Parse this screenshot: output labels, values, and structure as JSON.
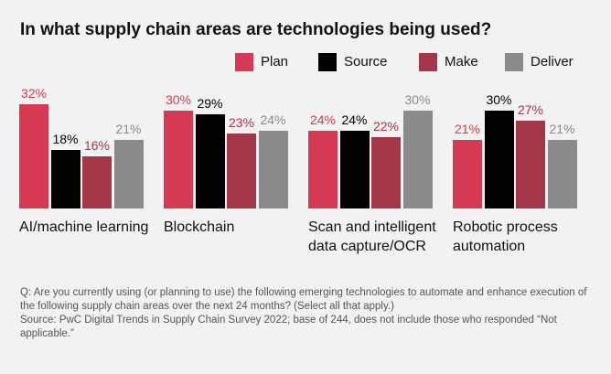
{
  "chart_data": {
    "type": "bar",
    "title": "In what supply chain areas are technologies being used?",
    "categories": [
      "AI/machine learning",
      "Blockchain",
      "Scan and intelligent data capture/OCR",
      "Robotic process automation"
    ],
    "series": [
      {
        "name": "Plan",
        "color": "#d63a52",
        "values": [
          32,
          30,
          24,
          21
        ],
        "value_labels": [
          "32%",
          "30%",
          "24%",
          "21%"
        ]
      },
      {
        "name": "Source",
        "color": "#000000",
        "values": [
          18,
          29,
          24,
          30
        ],
        "value_labels": [
          "18%",
          "29%",
          "24%",
          "30%"
        ]
      },
      {
        "name": "Make",
        "color": "#a33648",
        "values": [
          16,
          23,
          22,
          27
        ],
        "value_labels": [
          "16%",
          "23%",
          "22%",
          "27%"
        ]
      },
      {
        "name": "Deliver",
        "color": "#8a8a8a",
        "values": [
          21,
          24,
          30,
          21
        ],
        "value_labels": [
          "21%",
          "24%",
          "30%",
          "21%"
        ]
      }
    ],
    "legend": "top-right",
    "question": "Q: Are you currently using (or planning to use) the following emerging technologies to automate and enhance execution of the following supply chain areas over the next 24 months? (Select all that apply.)",
    "source": "Source: PwC Digital Trends in Supply Chain Survey 2022; base of 244, does not include those who responded “Not applicable.”"
  }
}
